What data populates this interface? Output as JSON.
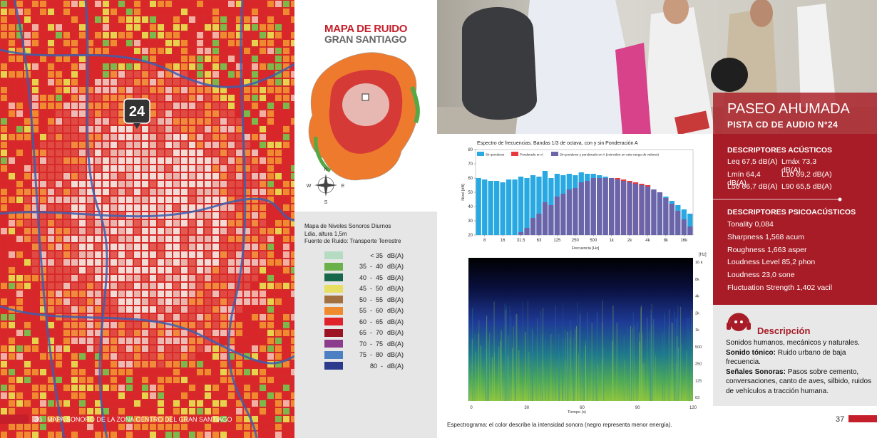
{
  "left_page": {
    "map_marker": "24",
    "footer": {
      "page_number": "36",
      "text": "MAPA SONORO DE LA ZONA CENTRO DEL GRAN SANTIAGO"
    }
  },
  "map_panel": {
    "title": "MAPA DE RUIDO",
    "subtitle": "GRAN SANTIAGO",
    "compass": {
      "n": "N",
      "s": "S",
      "e": "E",
      "w": "W"
    },
    "legend": {
      "lines": [
        "Mapa de Niveles Sonoros Diurnos",
        "Ldia, altura 1,5m",
        "Fuente de Ruido: Transporte Terrestre"
      ],
      "items": [
        {
          "range": "< 35",
          "unit": "dB(A)",
          "color": "#b5dcc3"
        },
        {
          "range": "35  -  40",
          "unit": "dB(A)",
          "color": "#6ab14a"
        },
        {
          "range": "40  -  45",
          "unit": "dB(A)",
          "color": "#17684b"
        },
        {
          "range": "45  -  50",
          "unit": "dB(A)",
          "color": "#e6df62"
        },
        {
          "range": "50  -  55",
          "unit": "dB(A)",
          "color": "#a3703f"
        },
        {
          "range": "55  -  60",
          "unit": "dB(A)",
          "color": "#f08a2f"
        },
        {
          "range": "60  -  65",
          "unit": "dB(A)",
          "color": "#e0222b"
        },
        {
          "range": "65  -  70",
          "unit": "dB(A)",
          "color": "#9c1424"
        },
        {
          "range": "70  -  75",
          "unit": "dB(A)",
          "color": "#8b3c8c"
        },
        {
          "range": "75  -  80",
          "unit": "dB(A)",
          "color": "#4c80c2"
        },
        {
          "range": "80  -",
          "unit": "dB(A)",
          "color": "#2b3a8c"
        }
      ]
    }
  },
  "chart_data": {
    "type": "bar",
    "title": "Espectro de frecuencias. Bandas 1/3 de octava, con y sin Ponderación A",
    "y_label": "Nivel [dB]",
    "x_label": "Frecuencia [Hz]",
    "categories": [
      null,
      "8",
      null,
      null,
      "16",
      null,
      null,
      "31.5",
      null,
      null,
      "63",
      null,
      null,
      "125",
      null,
      null,
      "250",
      null,
      null,
      "500",
      null,
      null,
      "1k",
      null,
      null,
      "2k",
      null,
      null,
      "4k",
      null,
      null,
      "8k",
      null,
      null,
      "16k",
      null
    ],
    "series": [
      {
        "name": "Sin ponderar",
        "color": "#29a9e1",
        "values": [
          60,
          59,
          58,
          58,
          57,
          59,
          59,
          61,
          60,
          62,
          61,
          65,
          60,
          63,
          62,
          63,
          62,
          64,
          63,
          63,
          62,
          61,
          60,
          59,
          58,
          57,
          56,
          55,
          54,
          52,
          50,
          47,
          44,
          41,
          38,
          35
        ]
      },
      {
        "name": "Ponderado en A",
        "color": "#e8383d",
        "values": [
          null,
          null,
          null,
          null,
          null,
          null,
          null,
          22,
          25,
          32,
          35,
          43,
          41,
          47,
          49,
          52,
          53,
          57,
          58,
          60,
          60,
          60,
          60,
          60,
          59,
          58,
          57,
          56,
          55,
          52,
          50,
          46,
          42,
          37,
          31,
          26
        ]
      }
    ],
    "overlap": {
      "name": "Sin ponderar y ponderado en A (coinciden en este rango de valores)",
      "color": "#6b64a9"
    },
    "ylim": [
      20,
      80
    ],
    "yticks": [
      20,
      30,
      40,
      50,
      60,
      70,
      80
    ]
  },
  "spectrogram": {
    "unit": "[Hz]",
    "yticks": [
      "16 k",
      "8k",
      "4k",
      "2k",
      "1k",
      "500",
      "250",
      "125",
      "63"
    ],
    "xticks": [
      "0",
      "30",
      "60",
      "90",
      "120"
    ],
    "x_label": "Tiempo (s)",
    "caption": "Espectrograma: el color describe la intensidad sonora (negro representa menor energía)."
  },
  "info_box": {
    "title": "PASEO AHUMADA",
    "subtitle": "PISTA CD DE AUDIO N°24",
    "acoustic": {
      "heading": "DESCRIPTORES ACÚSTICOS",
      "rows": [
        [
          "Leq 67,5 dB(A)",
          "Lmáx 73,3 dB(A)"
        ],
        [
          "Lmín 64,4 dB(A)",
          "L10 69,2 dB(A)"
        ],
        [
          "L50 66,7 dB(A)",
          "L90 65,5 dB(A)"
        ]
      ]
    },
    "psychoacoustic": {
      "heading": "DESCRIPTORES PSICOACÚSTICOS",
      "items": [
        "Tonality 0,084",
        "Sharpness 1,568 acum",
        "Roughness 1,663 asper",
        "Loudness Level 85,2 phon",
        "Loudness 23,0 sone",
        "Fluctuation Strength 1,402 vacil"
      ]
    }
  },
  "description": {
    "heading": "Descripción",
    "intro": "Sonidos humanos, mecánicos y naturales.",
    "tonal_label": "Sonido tónico:",
    "tonal_text": " Ruido urbano de baja frecuencia.",
    "signals_label": "Señales Sonoras:",
    "signals_text": " Pasos sobre cemento, conversaciones, canto de aves, silbido, ruidos de vehículos a tracción humana."
  },
  "right_page_number": "37"
}
